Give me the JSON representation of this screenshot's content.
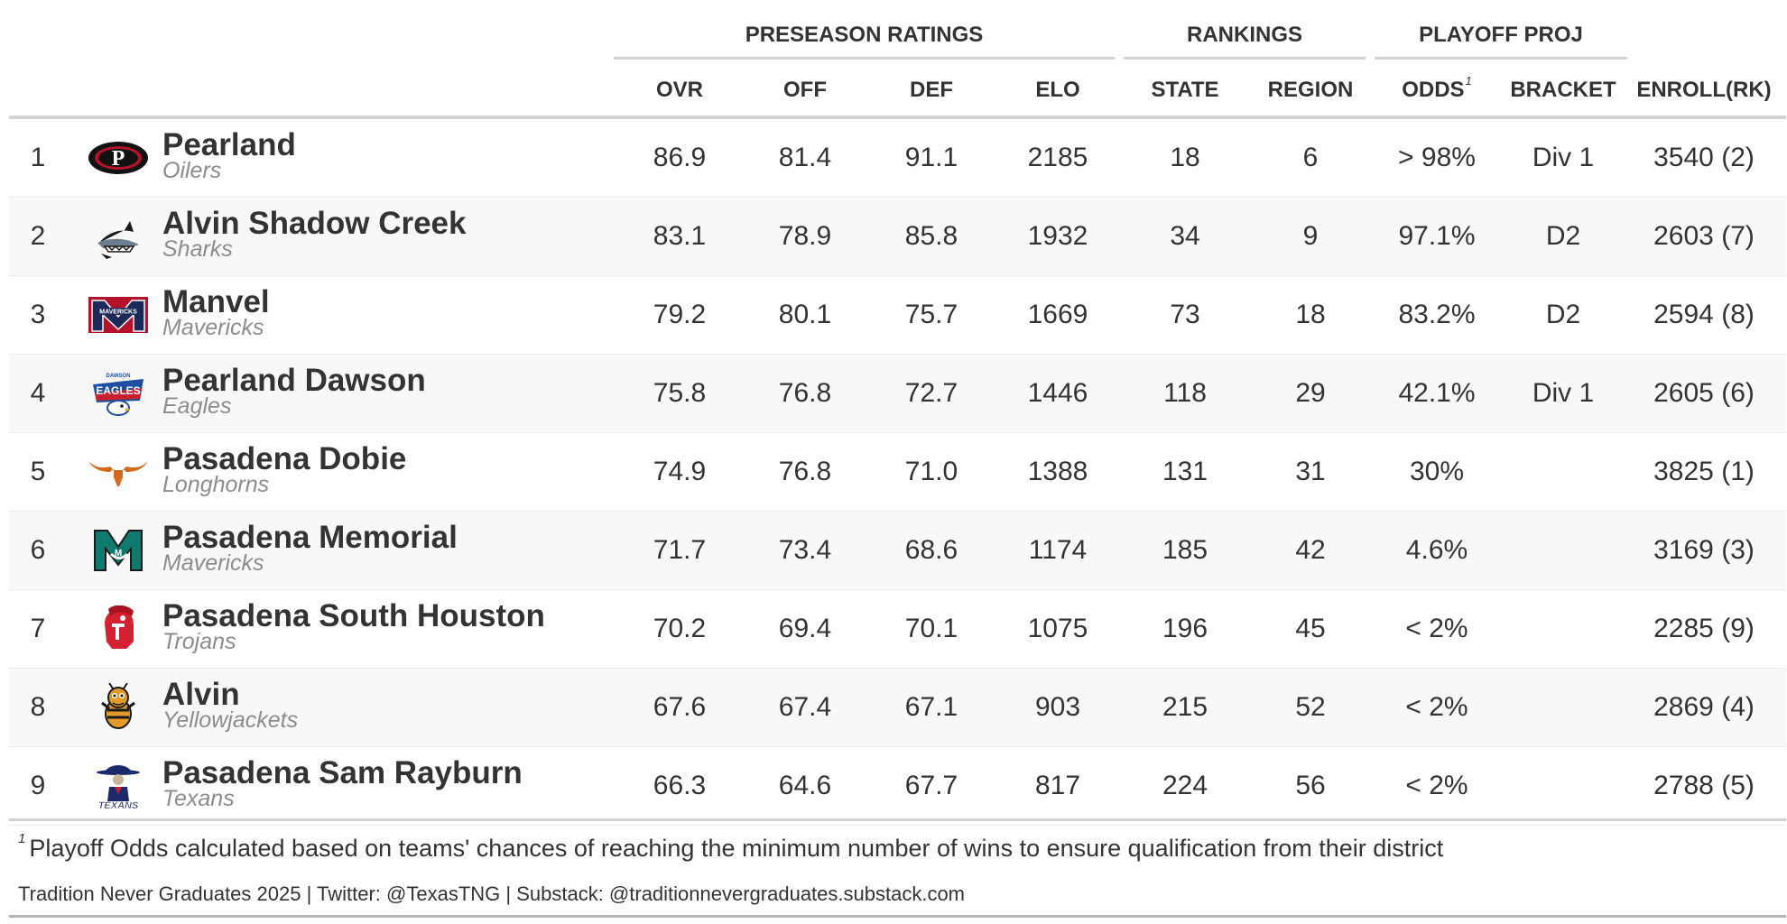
{
  "spanners": {
    "preseason": "PRESEASON RATINGS",
    "rankings": "RANKINGS",
    "playoff": "PLAYOFF PROJ"
  },
  "columns": {
    "ovr": "OVR",
    "off": "OFF",
    "def": "DEF",
    "elo": "ELO",
    "state": "STATE",
    "region": "REGION",
    "odds": "ODDS",
    "odds_sup": "1",
    "bracket": "BRACKET",
    "enroll": "ENROLL(RK)"
  },
  "rows": [
    {
      "rank": "1",
      "logo": "pearland-oilers-logo",
      "name": "Pearland",
      "nick": "Oilers",
      "ovr": "86.9",
      "off": "81.4",
      "def": "91.1",
      "elo": "2185",
      "state": "18",
      "region": "6",
      "odds": "> 98%",
      "bracket": "Div 1",
      "enroll": "3540 (2)"
    },
    {
      "rank": "2",
      "logo": "shark-logo",
      "name": "Alvin Shadow Creek",
      "nick": "Sharks",
      "ovr": "83.1",
      "off": "78.9",
      "def": "85.8",
      "elo": "1932",
      "state": "34",
      "region": "9",
      "odds": "97.1%",
      "bracket": "D2",
      "enroll": "2603 (7)"
    },
    {
      "rank": "3",
      "logo": "mavericks-m-logo",
      "name": "Manvel",
      "nick": "Mavericks",
      "ovr": "79.2",
      "off": "80.1",
      "def": "75.7",
      "elo": "1669",
      "state": "73",
      "region": "18",
      "odds": "83.2%",
      "bracket": "D2",
      "enroll": "2594 (8)"
    },
    {
      "rank": "4",
      "logo": "eagles-logo",
      "name": "Pearland Dawson",
      "nick": "Eagles",
      "ovr": "75.8",
      "off": "76.8",
      "def": "72.7",
      "elo": "1446",
      "state": "118",
      "region": "29",
      "odds": "42.1%",
      "bracket": "Div 1",
      "enroll": "2605 (6)"
    },
    {
      "rank": "5",
      "logo": "longhorn-logo",
      "name": "Pasadena Dobie",
      "nick": "Longhorns",
      "ovr": "74.9",
      "off": "76.8",
      "def": "71.0",
      "elo": "1388",
      "state": "131",
      "region": "31",
      "odds": "30%",
      "bracket": "",
      "enroll": "3825 (1)"
    },
    {
      "rank": "6",
      "logo": "memorial-m-logo",
      "name": "Pasadena Memorial",
      "nick": "Mavericks",
      "ovr": "71.7",
      "off": "73.4",
      "def": "68.6",
      "elo": "1174",
      "state": "185",
      "region": "42",
      "odds": "4.6%",
      "bracket": "",
      "enroll": "3169 (3)"
    },
    {
      "rank": "7",
      "logo": "trojan-helmet-logo",
      "name": "Pasadena South Houston",
      "nick": "Trojans",
      "ovr": "70.2",
      "off": "69.4",
      "def": "70.1",
      "elo": "1075",
      "state": "196",
      "region": "45",
      "odds": "< 2%",
      "bracket": "",
      "enroll": "2285 (9)"
    },
    {
      "rank": "8",
      "logo": "yellowjacket-logo",
      "name": "Alvin",
      "nick": "Yellowjackets",
      "ovr": "67.6",
      "off": "67.4",
      "def": "67.1",
      "elo": "903",
      "state": "215",
      "region": "52",
      "odds": "< 2%",
      "bracket": "",
      "enroll": "2869 (4)"
    },
    {
      "rank": "9",
      "logo": "texans-logo",
      "name": "Pasadena Sam Rayburn",
      "nick": "Texans",
      "ovr": "66.3",
      "off": "64.6",
      "def": "67.7",
      "elo": "817",
      "state": "224",
      "region": "56",
      "odds": "< 2%",
      "bracket": "",
      "enroll": "2788 (5)"
    }
  ],
  "footnote": {
    "marker": "1",
    "text": "Playoff Odds calculated based on teams' chances of reaching the minimum number of wins to ensure qualification from their district"
  },
  "source": "Tradition Never Graduates 2025 | Twitter: @TexasTNG | Substack: @traditionnevergraduates.substack.com",
  "colors": {
    "row_alt": "#f8f8f8",
    "rule": "#d3d3d3",
    "text": "#333333",
    "nick": "#8c8c8c"
  }
}
